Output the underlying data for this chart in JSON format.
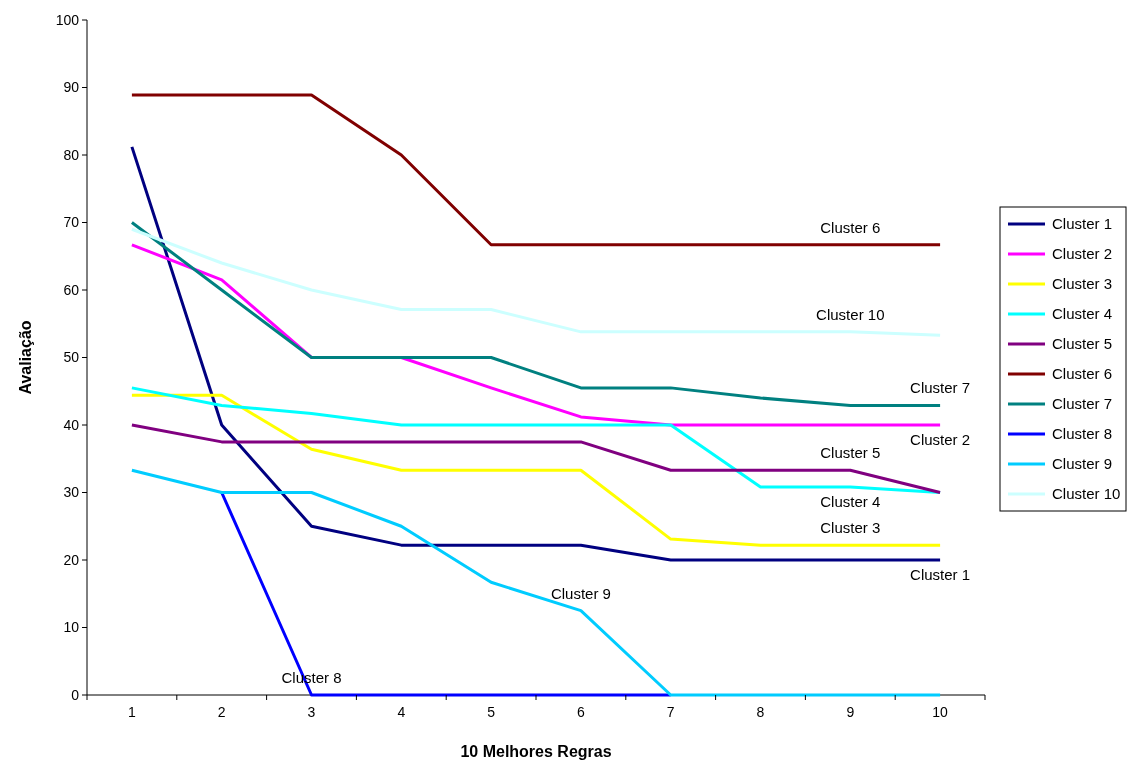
{
  "chart_data": {
    "type": "line",
    "xlabel": "10 Melhores Regras",
    "ylabel": "Avaliação",
    "categories": [
      "1",
      "2",
      "3",
      "4",
      "5",
      "6",
      "7",
      "8",
      "9",
      "10"
    ],
    "ylim": [
      0,
      100
    ],
    "yticks": [
      0,
      10,
      20,
      30,
      40,
      50,
      60,
      70,
      80,
      90,
      100
    ],
    "grid": false,
    "legend": "right",
    "marker": "none",
    "line_style": "solid",
    "series": [
      {
        "name": "Cluster 1",
        "color": "#000080",
        "values": [
          81.2,
          40,
          25,
          22.2,
          22.2,
          22.2,
          20,
          20,
          20,
          20
        ]
      },
      {
        "name": "Cluster 2",
        "color": "#ff00ff",
        "values": [
          66.7,
          61.5,
          50,
          50,
          45.5,
          41.2,
          40,
          40,
          40,
          40
        ]
      },
      {
        "name": "Cluster 3",
        "color": "#ffff00",
        "values": [
          44.4,
          44.4,
          36.4,
          33.3,
          33.3,
          33.3,
          23.1,
          22.2,
          22.2,
          22.2
        ]
      },
      {
        "name": "Cluster 4",
        "color": "#00ffff",
        "values": [
          45.5,
          42.9,
          41.7,
          40,
          40,
          40,
          40,
          30.8,
          30.8,
          30
        ]
      },
      {
        "name": "Cluster 5",
        "color": "#800080",
        "values": [
          40,
          37.5,
          37.5,
          37.5,
          37.5,
          37.5,
          33.3,
          33.3,
          33.3,
          30
        ]
      },
      {
        "name": "Cluster 6",
        "color": "#800000",
        "values": [
          88.9,
          88.9,
          88.9,
          80,
          66.7,
          66.7,
          66.7,
          66.7,
          66.7,
          66.7
        ]
      },
      {
        "name": "Cluster 7",
        "color": "#008080",
        "values": [
          70,
          60,
          50,
          50,
          50,
          45.5,
          45.5,
          44,
          42.9,
          42.9
        ]
      },
      {
        "name": "Cluster 8",
        "color": "#0000ff",
        "values": [
          null,
          30,
          0,
          0,
          0,
          0,
          0,
          null,
          null,
          null
        ]
      },
      {
        "name": "Cluster 9",
        "color": "#00ccff",
        "values": [
          33.3,
          30,
          30,
          25,
          16.7,
          12.5,
          0,
          0,
          0,
          0
        ]
      },
      {
        "name": "Cluster 10",
        "color": "#ccffff",
        "values": [
          69,
          64,
          60,
          57.1,
          57.1,
          53.8,
          53.8,
          53.8,
          53.8,
          53.3
        ]
      }
    ],
    "annotations": [
      {
        "text": "Cluster 6",
        "x": "9",
        "y": 66.7
      },
      {
        "text": "Cluster 10",
        "x": "9",
        "y": 53.8
      },
      {
        "text": "Cluster 7",
        "x": "10",
        "y": 42.9
      },
      {
        "text": "Cluster 2",
        "x": "10",
        "y": 40
      },
      {
        "text": "Cluster 5",
        "x": "9",
        "y": 33.3
      },
      {
        "text": "Cluster 4",
        "x": "9",
        "y": 30.8
      },
      {
        "text": "Cluster 3",
        "x": "9",
        "y": 22.2
      },
      {
        "text": "Cluster 1",
        "x": "10",
        "y": 20
      },
      {
        "text": "Cluster 8",
        "x": "3",
        "y": 0
      },
      {
        "text": "Cluster 9",
        "x": "6",
        "y": 12.5
      }
    ]
  }
}
